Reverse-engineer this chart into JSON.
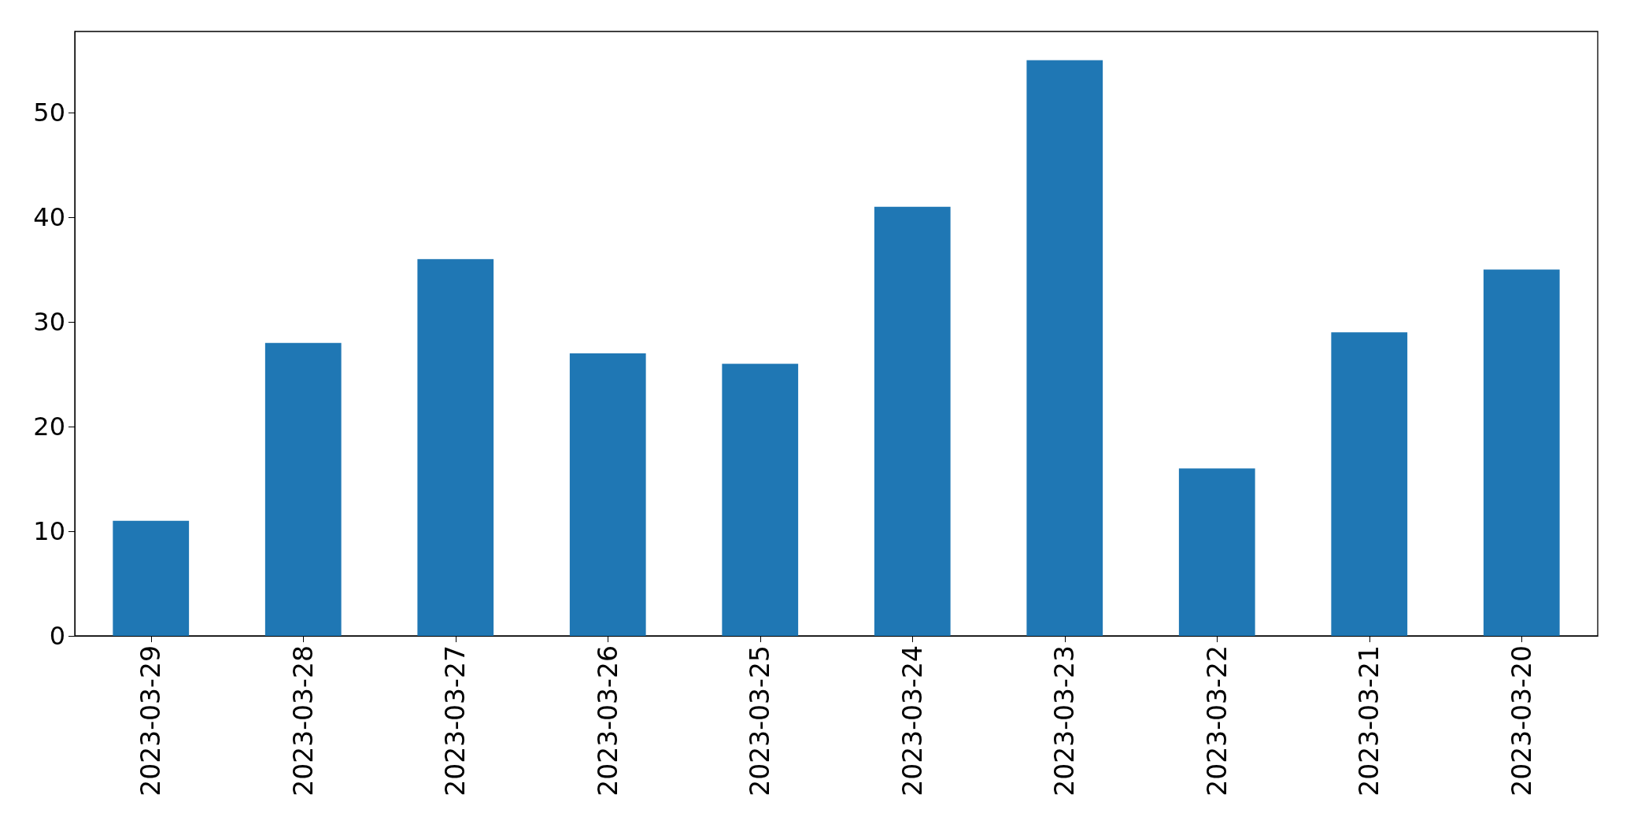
{
  "chart_data": {
    "type": "bar",
    "categories": [
      "2023-03-29",
      "2023-03-28",
      "2023-03-27",
      "2023-03-26",
      "2023-03-25",
      "2023-03-24",
      "2023-03-23",
      "2023-03-22",
      "2023-03-21",
      "2023-03-20"
    ],
    "values": [
      11,
      28,
      36,
      27,
      26,
      41,
      55,
      16,
      29,
      35
    ],
    "color": "#1f77b4",
    "ylim": [
      0,
      57.75
    ],
    "yticks": [
      0,
      10,
      20,
      30,
      40,
      50
    ],
    "grid": false
  }
}
